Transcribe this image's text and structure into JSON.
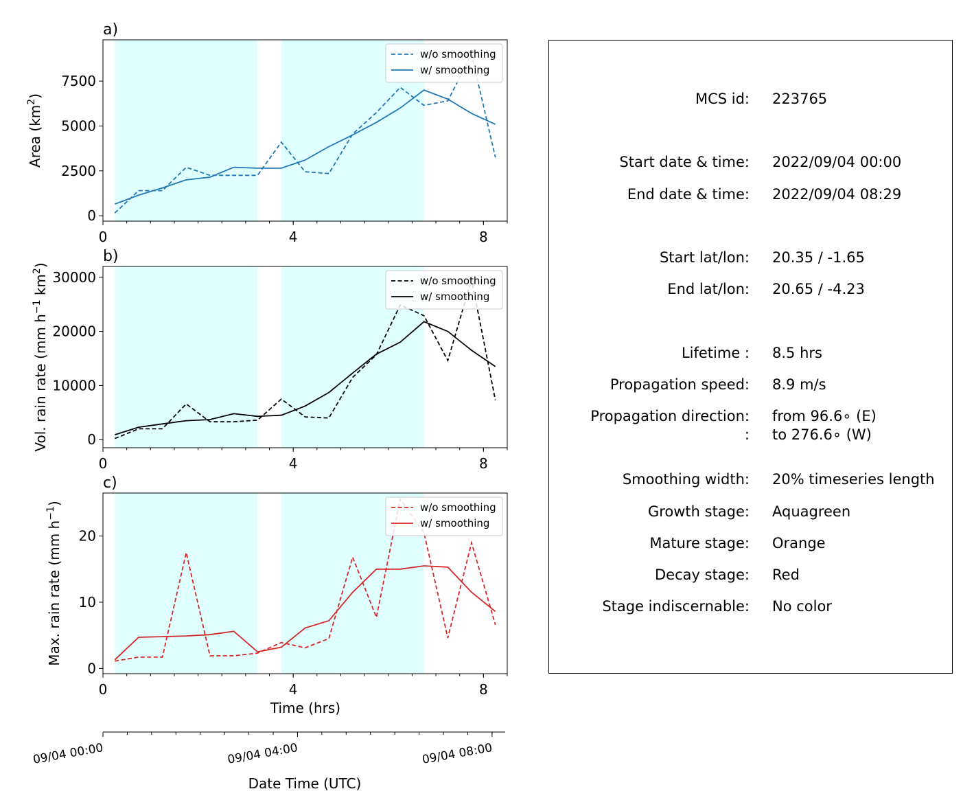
{
  "chart_data": [
    {
      "type": "line",
      "panel_label": "a)",
      "ylabel": "Area  (km$^2$)",
      "ylabel_text": "Area  (km",
      "ylabel_sup": "2",
      "ylabel_tail": ")",
      "xlabel": "",
      "xlim": [
        0,
        8.5
      ],
      "ylim": [
        -300,
        9800
      ],
      "yticks": [
        0,
        2500,
        5000,
        7500
      ],
      "xticks": [
        0,
        4,
        8
      ],
      "color": "#1f77b4",
      "legend_position": "top-right",
      "series": [
        {
          "name": "w/o smoothing",
          "style": "dashed",
          "x": [
            0.25,
            0.75,
            1.25,
            1.75,
            2.25,
            2.75,
            3.25,
            3.75,
            4.25,
            4.75,
            5.25,
            5.75,
            6.25,
            6.75,
            7.25,
            7.75,
            8.25
          ],
          "y": [
            150,
            1400,
            1400,
            2700,
            2250,
            2250,
            2250,
            4100,
            2450,
            2350,
            4550,
            5750,
            7150,
            6150,
            6400,
            9000,
            3250
          ]
        },
        {
          "name": "w/ smoothing",
          "style": "solid",
          "x": [
            0.25,
            0.75,
            1.25,
            1.75,
            2.25,
            2.75,
            3.25,
            3.75,
            4.25,
            4.75,
            5.25,
            5.75,
            6.25,
            6.75,
            7.25,
            7.75,
            8.25
          ],
          "y": [
            650,
            1150,
            1550,
            2000,
            2150,
            2700,
            2650,
            2650,
            3100,
            3850,
            4500,
            5200,
            6000,
            7000,
            6500,
            5700,
            5100
          ]
        }
      ]
    },
    {
      "type": "line",
      "panel_label": "b)",
      "ylabel": "Vol. rain rate (mm h$^{-1}$ km$^2$)",
      "ylabel_text": "Vol. rain rate (mm h",
      "ylabel_sup": "−1",
      "ylabel_mid": " km",
      "ylabel_sup2": "2",
      "ylabel_tail": ")",
      "xlabel": "",
      "xlim": [
        0,
        8.5
      ],
      "ylim": [
        -1500,
        32000
      ],
      "yticks": [
        0,
        10000,
        20000,
        30000
      ],
      "xticks": [
        0,
        4,
        8
      ],
      "color": "#000000",
      "legend_position": "top-right",
      "series": [
        {
          "name": "w/o smoothing",
          "style": "dashed",
          "x": [
            0.25,
            0.75,
            1.25,
            1.75,
            2.25,
            2.75,
            3.25,
            3.75,
            4.25,
            4.75,
            5.25,
            5.75,
            6.25,
            6.75,
            7.25,
            7.75,
            8.25
          ],
          "y": [
            200,
            2000,
            2000,
            6600,
            3300,
            3300,
            3600,
            7500,
            4200,
            4000,
            11500,
            15700,
            24900,
            22900,
            14600,
            29600,
            7300
          ]
        },
        {
          "name": "w/ smoothing",
          "style": "solid",
          "x": [
            0.25,
            0.75,
            1.25,
            1.75,
            2.25,
            2.75,
            3.25,
            3.75,
            4.25,
            4.75,
            5.25,
            5.75,
            6.25,
            6.75,
            7.25,
            7.75,
            8.25
          ],
          "y": [
            900,
            2300,
            2900,
            3500,
            3700,
            4800,
            4300,
            4500,
            6200,
            8700,
            12300,
            15800,
            18000,
            21800,
            20000,
            16500,
            13500
          ]
        }
      ]
    },
    {
      "type": "line",
      "panel_label": "c)",
      "ylabel": "Max. rain rate  (mm h$^{-1}$)",
      "ylabel_text": "Max. rain rate  (mm h",
      "ylabel_sup": "−1",
      "ylabel_tail": ")",
      "xlabel": "Time (hrs)",
      "xlim": [
        0,
        8.5
      ],
      "ylim": [
        -0.8,
        26.5
      ],
      "yticks": [
        0,
        10,
        20
      ],
      "xticks": [
        0,
        4,
        8
      ],
      "color": "#d62728",
      "legend_position": "top-right",
      "series": [
        {
          "name": "w/o smoothing",
          "style": "dashed",
          "x": [
            0.25,
            0.75,
            1.25,
            1.75,
            2.25,
            2.75,
            3.25,
            3.75,
            4.25,
            4.75,
            5.25,
            5.75,
            6.25,
            6.75,
            7.25,
            7.75,
            8.25
          ],
          "y": [
            1.1,
            1.7,
            1.7,
            17.5,
            1.9,
            1.9,
            2.3,
            3.9,
            3.1,
            4.5,
            16.8,
            7.7,
            25.6,
            20.5,
            4.6,
            19.0,
            6.6
          ]
        },
        {
          "name": "w/ smoothing",
          "style": "solid",
          "x": [
            0.25,
            0.75,
            1.25,
            1.75,
            2.25,
            2.75,
            3.25,
            3.75,
            4.25,
            4.75,
            5.25,
            5.75,
            6.25,
            6.75,
            7.25,
            7.75,
            8.25
          ],
          "y": [
            1.3,
            4.7,
            4.8,
            4.9,
            5.1,
            5.6,
            2.5,
            3.2,
            6.1,
            7.2,
            11.5,
            15.0,
            15.0,
            15.5,
            15.3,
            11.5,
            8.6
          ]
        }
      ]
    }
  ],
  "stages": [
    {
      "x_start": 0.25,
      "x_end": 3.25,
      "color": "#e0ffff"
    },
    {
      "x_start": 3.75,
      "x_end": 6.75,
      "color": "#e0ffff"
    }
  ],
  "datetime_axis": {
    "label": "Date Time (UTC)",
    "xlim": [
      0,
      8.5
    ],
    "ticks": [
      {
        "x": 0,
        "label": "09/04 00:00"
      },
      {
        "x": 4,
        "label": "09/04 04:00"
      },
      {
        "x": 8,
        "label": "09/04 08:00"
      }
    ]
  },
  "info": [
    {
      "label": "MCS id:",
      "value": "223765",
      "row": 0
    },
    {
      "label": "Start date & time:",
      "value": "2022/09/04 00:00",
      "row": 2
    },
    {
      "label": "End date & time:",
      "value": "2022/09/04 08:29",
      "row": 3
    },
    {
      "label": "Start lat/lon:",
      "value": "20.35 / -1.65",
      "row": 5
    },
    {
      "label": "End lat/lon:",
      "value": "20.65 / -4.23",
      "row": 6
    },
    {
      "label": "Lifetime :",
      "value": "8.5 hrs",
      "row": 8
    },
    {
      "label": "Propagation speed:",
      "value": "8.9 m/s",
      "row": 9
    },
    {
      "label": "Propagation direction:",
      "value": "from  96.6∘ (E)",
      "row": 10
    },
    {
      "label": ":",
      "value": "to   276.6∘ (W)",
      "row": 10.58
    },
    {
      "label": "Smoothing width:",
      "value": "20% timeseries length",
      "row": 12
    },
    {
      "label": "Growth stage:",
      "value": "Aquagreen",
      "row": 13
    },
    {
      "label": "Mature stage:",
      "value": "Orange",
      "row": 14
    },
    {
      "label": "Decay stage:",
      "value": "Red",
      "row": 15
    },
    {
      "label": "Stage indiscernable:",
      "value": "No color",
      "row": 16
    }
  ]
}
